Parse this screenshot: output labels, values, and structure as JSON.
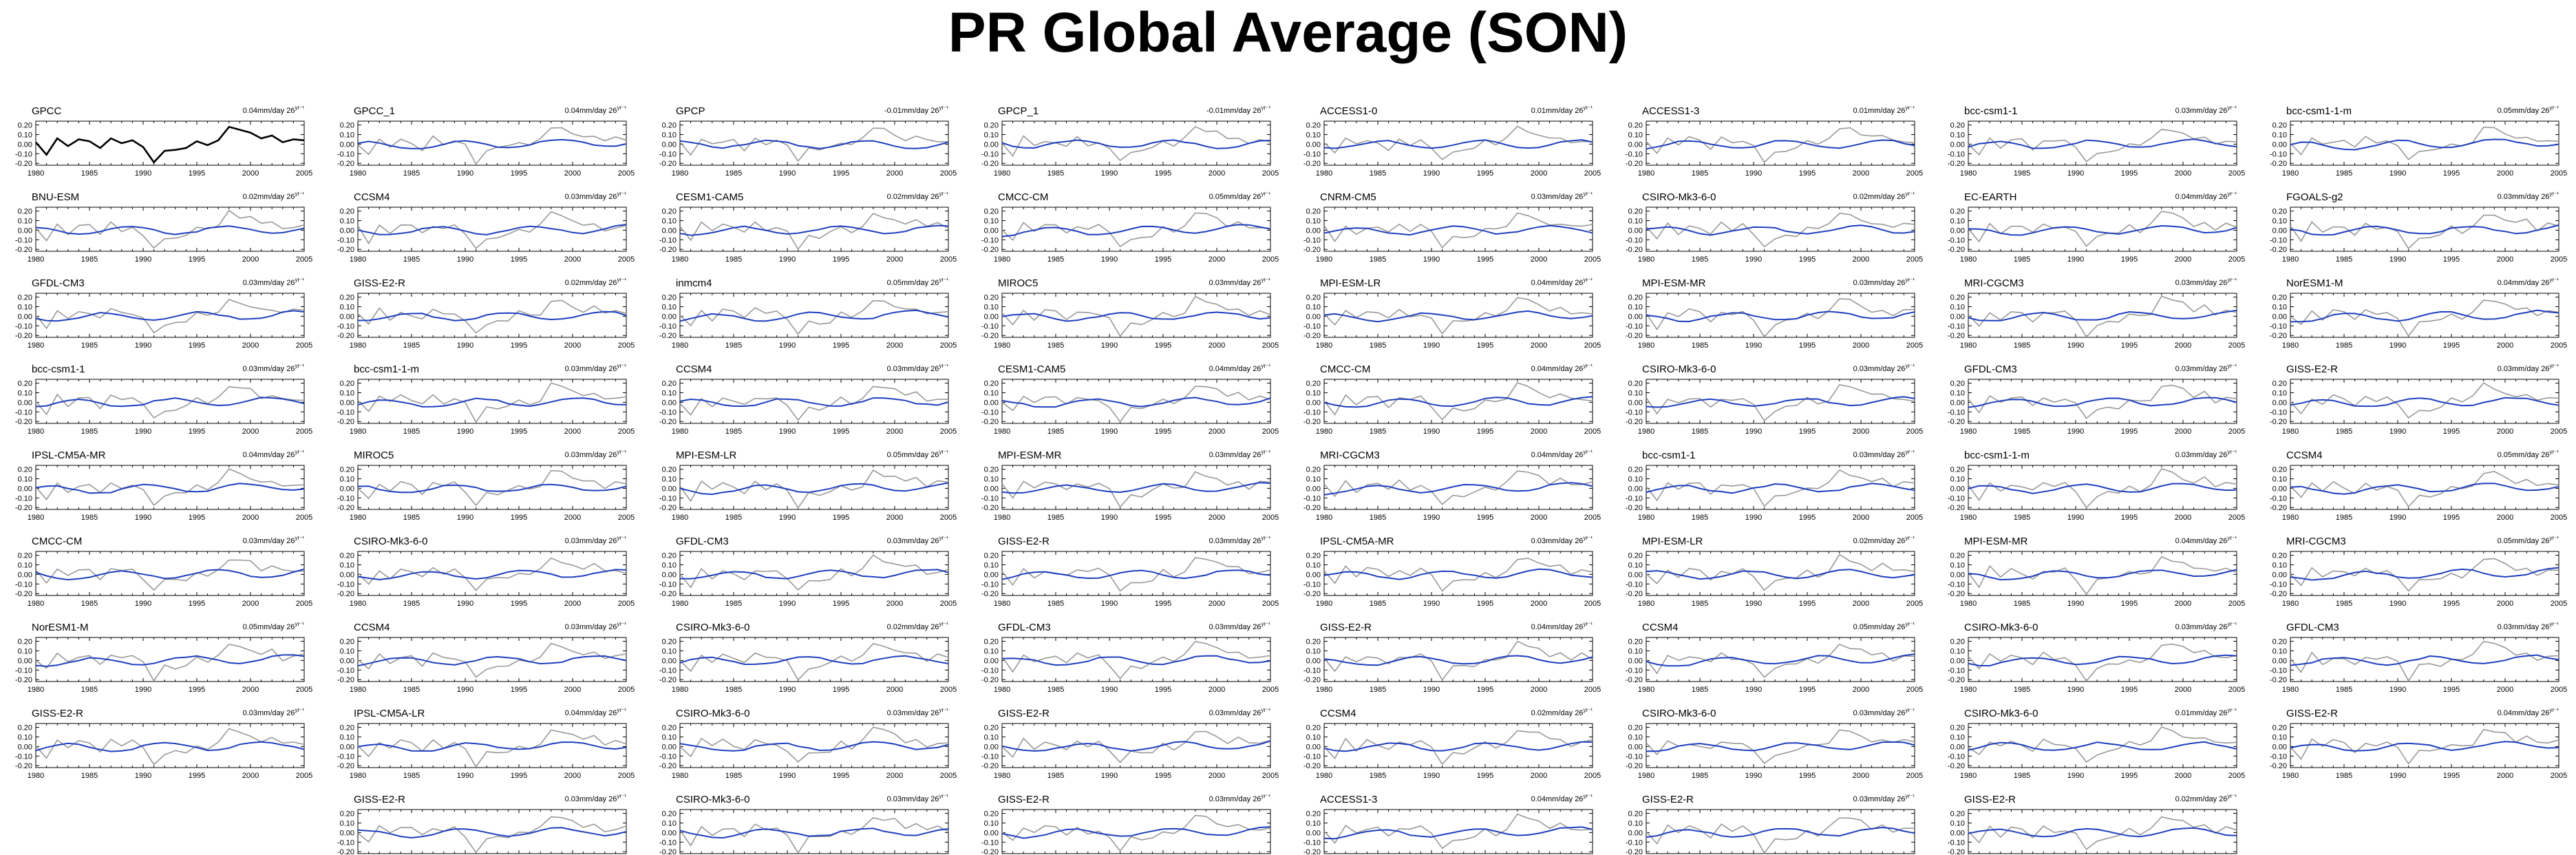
{
  "figure": {
    "title": "PR Global Average (SON)"
  },
  "styles": {
    "obs_color": "#000000",
    "model_color": "#999999",
    "trend_color": "#1f3fbf"
  },
  "chart_data": {
    "type": "line",
    "x": [
      1980,
      1981,
      1982,
      1983,
      1984,
      1985,
      1986,
      1987,
      1988,
      1989,
      1990,
      1991,
      1992,
      1993,
      1994,
      1995,
      1996,
      1997,
      1998,
      1999,
      2000,
      2001,
      2002,
      2003,
      2004,
      2005
    ],
    "x_ticks": [
      1980,
      1985,
      1990,
      1995,
      2000,
      2005
    ],
    "y_ticks": [
      0.2,
      0.1,
      0.0,
      -0.1,
      -0.2
    ],
    "y_tick_labels": [
      "0.20",
      "0.10",
      "0.00",
      "-0.10",
      "-0.20"
    ],
    "xlim": [
      1980,
      2005
    ],
    "ylim": [
      -0.22,
      0.24
    ],
    "reference_series": [
      0.02,
      -0.11,
      0.06,
      -0.02,
      0.05,
      0.03,
      -0.04,
      0.06,
      0.01,
      0.04,
      -0.03,
      -0.19,
      -0.07,
      -0.06,
      -0.04,
      0.03,
      -0.01,
      0.04,
      0.18,
      0.15,
      0.12,
      0.06,
      0.09,
      0.02,
      0.05,
      0.04
    ],
    "panels": [
      {
        "name": "GPCC",
        "trend": "0.04mm/day 26yr",
        "observed": true
      },
      {
        "name": "GPCC_1",
        "trend": "0.04mm/day 26yr"
      },
      {
        "name": "GPCP",
        "trend": "-0.01mm/day 26yr"
      },
      {
        "name": "GPCP_1",
        "trend": "-0.01mm/day 26yr"
      },
      {
        "name": "ACCESS1-0",
        "trend": "0.01mm/day 26yr"
      },
      {
        "name": "ACCESS1-3",
        "trend": "0.01mm/day 26yr"
      },
      {
        "name": "bcc-csm1-1",
        "trend": "0.03mm/day 26yr"
      },
      {
        "name": "bcc-csm1-1-m",
        "trend": "0.05mm/day 26yr"
      },
      {
        "name": "BNU-ESM",
        "trend": "0.02mm/day 26yr"
      },
      {
        "name": "CCSM4",
        "trend": "0.03mm/day 26yr"
      },
      {
        "name": "CESM1-CAM5",
        "trend": "0.02mm/day 26yr"
      },
      {
        "name": "CMCC-CM",
        "trend": "0.05mm/day 26yr"
      },
      {
        "name": "CNRM-CM5",
        "trend": "0.03mm/day 26yr"
      },
      {
        "name": "CSIRO-Mk3-6-0",
        "trend": "0.02mm/day 26yr"
      },
      {
        "name": "EC-EARTH",
        "trend": "0.04mm/day 26yr"
      },
      {
        "name": "FGOALS-g2",
        "trend": "0.03mm/day 26yr"
      },
      {
        "name": "GFDL-CM3",
        "trend": "0.03mm/day 26yr"
      },
      {
        "name": "GISS-E2-R",
        "trend": "0.02mm/day 26yr"
      },
      {
        "name": "inmcm4",
        "trend": "0.05mm/day 26yr"
      },
      {
        "name": "MIROC5",
        "trend": "0.03mm/day 26yr"
      },
      {
        "name": "MPI-ESM-LR",
        "trend": "0.04mm/day 26yr"
      },
      {
        "name": "MPI-ESM-MR",
        "trend": "0.03mm/day 26yr"
      },
      {
        "name": "MRI-CGCM3",
        "trend": "0.03mm/day 26yr"
      },
      {
        "name": "NorESM1-M",
        "trend": "0.04mm/day 26yr"
      },
      {
        "name": "bcc-csm1-1",
        "trend": "0.03mm/day 26yr"
      },
      {
        "name": "bcc-csm1-1-m",
        "trend": "0.03mm/day 26yr"
      },
      {
        "name": "CCSM4",
        "trend": "0.03mm/day 26yr"
      },
      {
        "name": "CESM1-CAM5",
        "trend": "0.04mm/day 26yr"
      },
      {
        "name": "CMCC-CM",
        "trend": "0.04mm/day 26yr"
      },
      {
        "name": "CSIRO-Mk3-6-0",
        "trend": "0.03mm/day 26yr"
      },
      {
        "name": "GFDL-CM3",
        "trend": "0.03mm/day 26yr"
      },
      {
        "name": "GISS-E2-R",
        "trend": "0.03mm/day 26yr"
      },
      {
        "name": "IPSL-CM5A-MR",
        "trend": "0.04mm/day 26yr"
      },
      {
        "name": "MIROC5",
        "trend": "0.03mm/day 26yr"
      },
      {
        "name": "MPI-ESM-LR",
        "trend": "0.05mm/day 26yr"
      },
      {
        "name": "MPI-ESM-MR",
        "trend": "0.03mm/day 26yr"
      },
      {
        "name": "MRI-CGCM3",
        "trend": "0.04mm/day 26yr"
      },
      {
        "name": "bcc-csm1-1",
        "trend": "0.03mm/day 26yr"
      },
      {
        "name": "bcc-csm1-1-m",
        "trend": "0.03mm/day 26yr"
      },
      {
        "name": "CCSM4",
        "trend": "0.05mm/day 26yr"
      },
      {
        "name": "CMCC-CM",
        "trend": "0.03mm/day 26yr"
      },
      {
        "name": "CSIRO-Mk3-6-0",
        "trend": "0.03mm/day 26yr"
      },
      {
        "name": "GFDL-CM3",
        "trend": "0.03mm/day 26yr"
      },
      {
        "name": "GISS-E2-R",
        "trend": "0.03mm/day 26yr"
      },
      {
        "name": "IPSL-CM5A-MR",
        "trend": "0.03mm/day 26yr"
      },
      {
        "name": "MPI-ESM-LR",
        "trend": "0.02mm/day 26yr"
      },
      {
        "name": "MPI-ESM-MR",
        "trend": "0.04mm/day 26yr"
      },
      {
        "name": "MRI-CGCM3",
        "trend": "0.05mm/day 26yr"
      },
      {
        "name": "NorESM1-M",
        "trend": "0.05mm/day 26yr"
      },
      {
        "name": "CCSM4",
        "trend": "0.03mm/day 26yr"
      },
      {
        "name": "CSIRO-Mk3-6-0",
        "trend": "0.02mm/day 26yr"
      },
      {
        "name": "GFDL-CM3",
        "trend": "0.03mm/day 26yr"
      },
      {
        "name": "GISS-E2-R",
        "trend": "0.04mm/day 26yr"
      },
      {
        "name": "CCSM4",
        "trend": "0.05mm/day 26yr"
      },
      {
        "name": "CSIRO-Mk3-6-0",
        "trend": "0.03mm/day 26yr"
      },
      {
        "name": "GFDL-CM3",
        "trend": "0.03mm/day 26yr"
      },
      {
        "name": "GISS-E2-R",
        "trend": "0.03mm/day 26yr"
      },
      {
        "name": "IPSL-CM5A-LR",
        "trend": "0.04mm/day 26yr"
      },
      {
        "name": "CSIRO-Mk3-6-0",
        "trend": "0.03mm/day 26yr"
      },
      {
        "name": "GISS-E2-R",
        "trend": "0.03mm/day 26yr"
      },
      {
        "name": "CCSM4",
        "trend": "0.02mm/day 26yr"
      },
      {
        "name": "CSIRO-Mk3-6-0",
        "trend": "0.03mm/day 26yr"
      },
      {
        "name": "CSIRO-Mk3-6-0",
        "trend": "0.01mm/day 26yr"
      },
      {
        "name": "GISS-E2-R",
        "trend": "0.04mm/day 26yr"
      },
      {
        "name": "GISS-E2-R",
        "trend": "0.03mm/day 26yr"
      },
      {
        "name": "CSIRO-Mk3-6-0",
        "trend": "0.03mm/day 26yr"
      },
      {
        "name": "GISS-E2-R",
        "trend": "0.03mm/day 26yr"
      },
      {
        "name": "ACCESS1-3",
        "trend": "0.04mm/day 26yr"
      },
      {
        "name": "GISS-E2-R",
        "trend": "0.03mm/day 26yr"
      },
      {
        "name": "GISS-E2-R",
        "trend": "0.02mm/day 26yr"
      }
    ]
  }
}
